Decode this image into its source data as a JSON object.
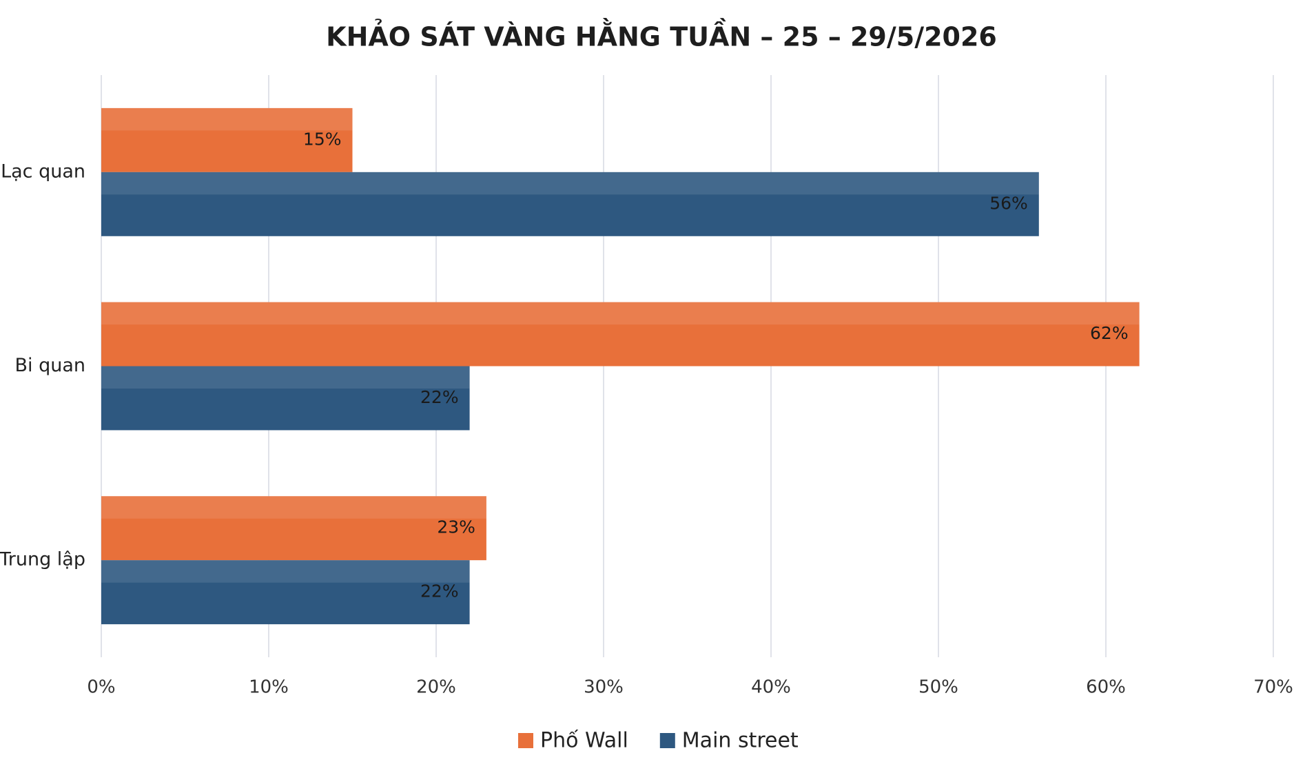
{
  "chart_data": {
    "type": "barh",
    "title": "KHẢO SÁT VÀNG HẰNG TUẦN – 25 – 29/5/2026",
    "categories": [
      "Lạc quan",
      "Bi quan",
      "Trung lập"
    ],
    "series": [
      {
        "name": "Phố Wall",
        "color": "#e8703a",
        "values": [
          15,
          62,
          23
        ],
        "value_labels": [
          "15%",
          "62%",
          "23%"
        ]
      },
      {
        "name": "Main street",
        "color": "#2e5880",
        "values": [
          56,
          22,
          22
        ],
        "value_labels": [
          "56%",
          "22%",
          "22%"
        ]
      }
    ],
    "xlim": [
      0,
      70
    ],
    "xticks": [
      {
        "value": 0,
        "label": "0%"
      },
      {
        "value": 10,
        "label": "10%"
      },
      {
        "value": 20,
        "label": "20%"
      },
      {
        "value": 30,
        "label": "30%"
      },
      {
        "value": 40,
        "label": "40%"
      },
      {
        "value": 50,
        "label": "50%"
      },
      {
        "value": 60,
        "label": "60%"
      },
      {
        "value": 70,
        "label": "70%"
      }
    ],
    "grid": true,
    "legend": "bottom"
  }
}
